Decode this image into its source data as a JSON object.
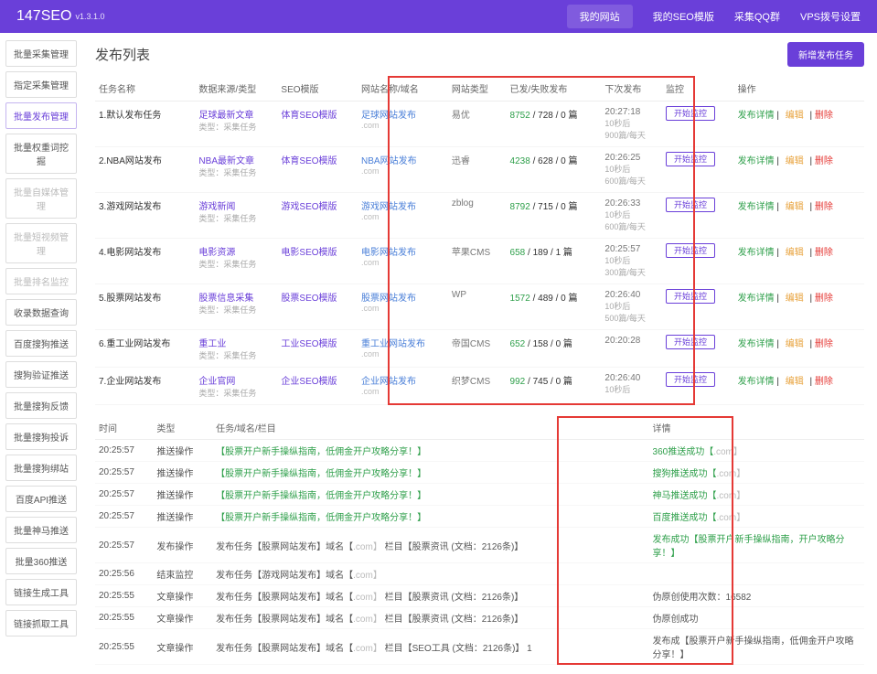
{
  "header": {
    "logo": "147SEO",
    "version": "v1.3.1.0",
    "nav": [
      "我的网站",
      "我的SEO模版",
      "采集QQ群",
      "VPS拨号设置"
    ],
    "active": 0
  },
  "sidebar": [
    {
      "label": "批量采集管理",
      "active": false
    },
    {
      "label": "指定采集管理",
      "active": false
    },
    {
      "label": "批量发布管理",
      "active": true
    },
    {
      "label": "批量权重词挖掘",
      "active": false
    },
    {
      "label": "批量自媒体管理",
      "dim": true
    },
    {
      "label": "批量短视频管理",
      "dim": true
    },
    {
      "label": "批量排名监控",
      "dim": true
    },
    {
      "label": "收录数据查询",
      "active": false
    },
    {
      "label": "百度搜狗推送",
      "active": false
    },
    {
      "label": "搜狗验证推送",
      "active": false
    },
    {
      "label": "批量搜狗反馈",
      "active": false
    },
    {
      "label": "批量搜狗投诉",
      "active": false
    },
    {
      "label": "批量搜狗绑站",
      "active": false
    },
    {
      "label": "百度API推送",
      "active": false
    },
    {
      "label": "批量神马推送",
      "active": false
    },
    {
      "label": "批量360推送",
      "active": false
    },
    {
      "label": "链接生成工具",
      "active": false
    },
    {
      "label": "链接抓取工具",
      "active": false
    }
  ],
  "pageTitle": "发布列表",
  "newBtn": "新增发布任务",
  "columns": [
    "任务名称",
    "数据来源/类型",
    "SEO模版",
    "网站名称/域名",
    "网站类型",
    "已发/失败发布",
    "下次发布",
    "监控",
    "操作"
  ],
  "rows": [
    {
      "idx": "1",
      "task": "默认发布任务",
      "src": "足球最新文章",
      "srcSub": "类型：采集任务",
      "tpl": "体育SEO模版",
      "site": "足球网站发布",
      "siteSub": ".com",
      "cms": "易优",
      "pub": "8752 / 728 / 0 篇",
      "next": "20:27:18",
      "nextSub": "10秒后",
      "nextSub2": "900篇/每天",
      "mon": "开始监控"
    },
    {
      "idx": "2",
      "task": "NBA网站发布",
      "src": "NBA最新文章",
      "srcSub": "类型：采集任务",
      "tpl": "体育SEO模版",
      "site": "NBA网站发布",
      "siteSub": ".com",
      "cms": "迅睿",
      "pub": "4238 / 628 / 0 篇",
      "next": "20:26:25",
      "nextSub": "10秒后",
      "nextSub2": "600篇/每天",
      "mon": "开始监控"
    },
    {
      "idx": "3",
      "task": "游戏网站发布",
      "src": "游戏新闻",
      "srcSub": "类型：采集任务",
      "tpl": "游戏SEO模版",
      "site": "游戏网站发布",
      "siteSub": ".com",
      "cms": "zblog",
      "pub": "8792 / 715 / 0 篇",
      "next": "20:26:33",
      "nextSub": "10秒后",
      "nextSub2": "600篇/每天",
      "mon": "开始监控"
    },
    {
      "idx": "4",
      "task": "电影网站发布",
      "src": "电影资源",
      "srcSub": "类型：采集任务",
      "tpl": "电影SEO模版",
      "site": "电影网站发布",
      "siteSub": ".com",
      "cms": "苹果CMS",
      "pub": "658 / 189 / 1 篇",
      "next": "20:25:57",
      "nextSub": "10秒后",
      "nextSub2": "300篇/每天",
      "mon": "开始监控"
    },
    {
      "idx": "5",
      "task": "股票网站发布",
      "src": "股票信息采集",
      "srcSub": "类型：采集任务",
      "tpl": "股票SEO模版",
      "site": "股票网站发布",
      "siteSub": ".com",
      "cms": "WP",
      "pub": "1572 / 489 / 0 篇",
      "next": "20:26:40",
      "nextSub": "10秒后",
      "nextSub2": "500篇/每天",
      "mon": "开始监控"
    },
    {
      "idx": "6",
      "task": "重工业网站发布",
      "src": "重工业",
      "srcSub": "类型：采集任务",
      "tpl": "工业SEO模版",
      "site": "重工业网站发布",
      "siteSub": ".com",
      "cms": "帝国CMS",
      "pub": "652 / 158 / 0 篇",
      "next": "20:20:28",
      "nextSub": "",
      "nextSub2": "",
      "mon": "开始监控"
    },
    {
      "idx": "7",
      "task": "企业网站发布",
      "src": "企业官网",
      "srcSub": "类型：采集任务",
      "tpl": "企业SEO模版",
      "site": "企业网站发布",
      "siteSub": ".com",
      "cms": "织梦CMS",
      "pub": "992 / 745 / 0 篇",
      "next": "20:26:40",
      "nextSub": "10秒后",
      "nextSub2": "",
      "mon": "开始监控"
    }
  ],
  "actions": {
    "detail": "发布详情",
    "edit": "编辑",
    "del": "删除"
  },
  "logCols": [
    "时间",
    "类型",
    "任务/域名/栏目",
    "详情"
  ],
  "logs": [
    {
      "t": "20:25:57",
      "ty": "推送操作",
      "task": "【股票开户新手操纵指南，低佣金开户攻略分享！】",
      "detail": "360推送成功【",
      "detailMask": ".com】"
    },
    {
      "t": "20:25:57",
      "ty": "推送操作",
      "task": "【股票开户新手操纵指南，低佣金开户攻略分享！】",
      "detail": "搜狗推送成功【",
      "detailMask": ".com】"
    },
    {
      "t": "20:25:57",
      "ty": "推送操作",
      "task": "【股票开户新手操纵指南，低佣金开户攻略分享！】",
      "detail": "神马推送成功【",
      "detailMask": ".com】"
    },
    {
      "t": "20:25:57",
      "ty": "推送操作",
      "task": "【股票开户新手操纵指南，低佣金开户攻略分享！】",
      "detail": "百度推送成功【",
      "detailMask": ".com】"
    },
    {
      "t": "20:25:57",
      "ty": "发布操作",
      "taskPlain": "发布任务【股票网站发布】域名【",
      "taskMask": ".com】",
      "task2": "栏目【股票资讯 (文档：2126条)】",
      "detail": "发布成功【股票开户新手操纵指南，开户攻略分享！】",
      "green": true
    },
    {
      "t": "20:25:56",
      "ty": "结束监控",
      "taskPlain": "发布任务【游戏网站发布】域名【",
      "taskMask": ".com】",
      "detail": ""
    },
    {
      "t": "20:25:55",
      "ty": "文章操作",
      "taskPlain": "发布任务【股票网站发布】域名【",
      "taskMask": ".com】",
      "task2": "栏目【股票资讯 (文档：2126条)】",
      "detail": "伪原创使用次数：16582"
    },
    {
      "t": "20:25:55",
      "ty": "文章操作",
      "taskPlain": "发布任务【股票网站发布】域名【",
      "taskMask": ".com】",
      "task2": "栏目【股票资讯 (文档：2126条)】",
      "detail": "伪原创成功"
    },
    {
      "t": "20:25:55",
      "ty": "文章操作",
      "taskPlain": "发布任务【股票网站发布】域名【",
      "taskMask": ".com】",
      "task2": "栏目【SEO工具 (文档：2126条)】 1",
      "detail": "发布成【股票开户新手操纵指南，低佣金开户攻略分享！】"
    }
  ]
}
